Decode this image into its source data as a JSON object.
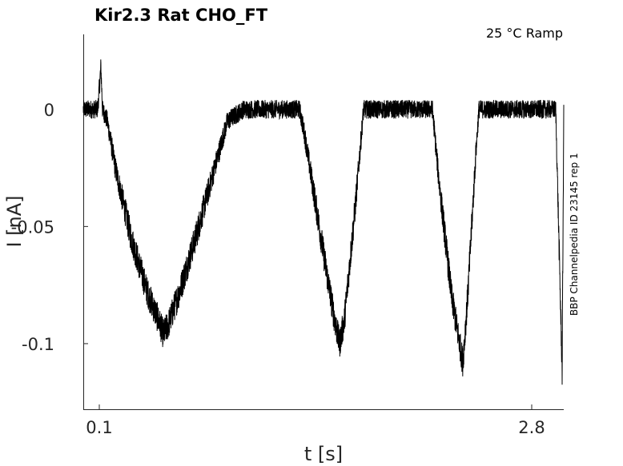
{
  "chart_data": {
    "type": "line",
    "title": "Kir2.3  Rat  CHO_FT",
    "annotation": "25 °C  Ramp",
    "side_label": "BBP Channelpedia ID 23145 rep 1",
    "xlabel": "t [s]",
    "ylabel": "I [nA]",
    "xlim": [
      0.0,
      3.0
    ],
    "ylim": [
      -0.128,
      0.032
    ],
    "xticks": [
      {
        "value": 0.1,
        "label": "0.1"
      },
      {
        "value": 2.8,
        "label": "2.8"
      }
    ],
    "yticks": [
      {
        "value": 0,
        "label": "0"
      },
      {
        "value": -0.05,
        "label": "-0.05"
      },
      {
        "value": -0.1,
        "label": "-0.1"
      }
    ],
    "line_color": "#000000",
    "noise_amplitude": 0.004,
    "series": [
      {
        "x": [
          0.0,
          0.09,
          0.11,
          0.12,
          0.15,
          0.2,
          0.3,
          0.4,
          0.47,
          0.5,
          0.53,
          0.6,
          0.7,
          0.8,
          0.9,
          1.0,
          1.2,
          1.35,
          1.38,
          1.45,
          1.52,
          1.57,
          1.6,
          1.63,
          1.7,
          1.75,
          1.8,
          2.18,
          2.22,
          2.3,
          2.35,
          2.37,
          2.4,
          2.45,
          2.47,
          2.53,
          2.95,
          2.99,
          3.0
        ],
        "y": [
          0.0,
          0.0,
          0.018,
          0.0,
          -0.005,
          -0.025,
          -0.055,
          -0.078,
          -0.09,
          -0.096,
          -0.092,
          -0.078,
          -0.055,
          -0.03,
          -0.005,
          0.0,
          0.0,
          0.0,
          -0.01,
          -0.04,
          -0.07,
          -0.09,
          -0.1,
          -0.09,
          -0.04,
          0.0,
          0.0,
          0.0,
          -0.03,
          -0.08,
          -0.1,
          -0.108,
          -0.08,
          -0.02,
          0.0,
          0.0,
          0.0,
          -0.112,
          -0.002
        ]
      }
    ]
  }
}
